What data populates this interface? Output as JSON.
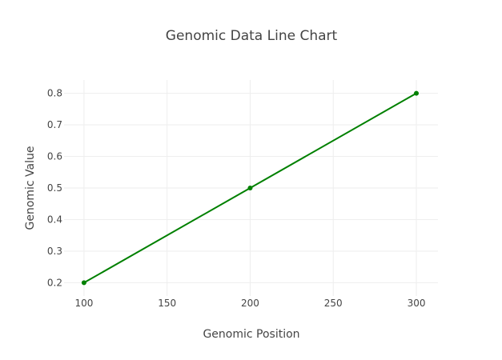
{
  "chart_data": {
    "type": "line",
    "title": "Genomic Data Line Chart",
    "xlabel": "Genomic Position",
    "ylabel": "Genomic Value",
    "x": [
      100,
      200,
      300
    ],
    "series": [
      {
        "values": [
          0.2,
          0.5,
          0.8
        ],
        "color": "#008000",
        "markers": true
      }
    ],
    "xlim": [
      88,
      313
    ],
    "ylim": [
      0.158,
      0.842
    ],
    "xticks": [
      100,
      150,
      200,
      250,
      300
    ],
    "xtick_labels": [
      "100",
      "150",
      "200",
      "250",
      "300"
    ],
    "yticks": [
      0.2,
      0.3,
      0.4,
      0.5,
      0.6,
      0.7,
      0.8
    ],
    "ytick_labels": [
      "0.2",
      "0.3",
      "0.4",
      "0.5",
      "0.6",
      "0.7",
      "0.8"
    ],
    "grid": true,
    "legend": false
  }
}
